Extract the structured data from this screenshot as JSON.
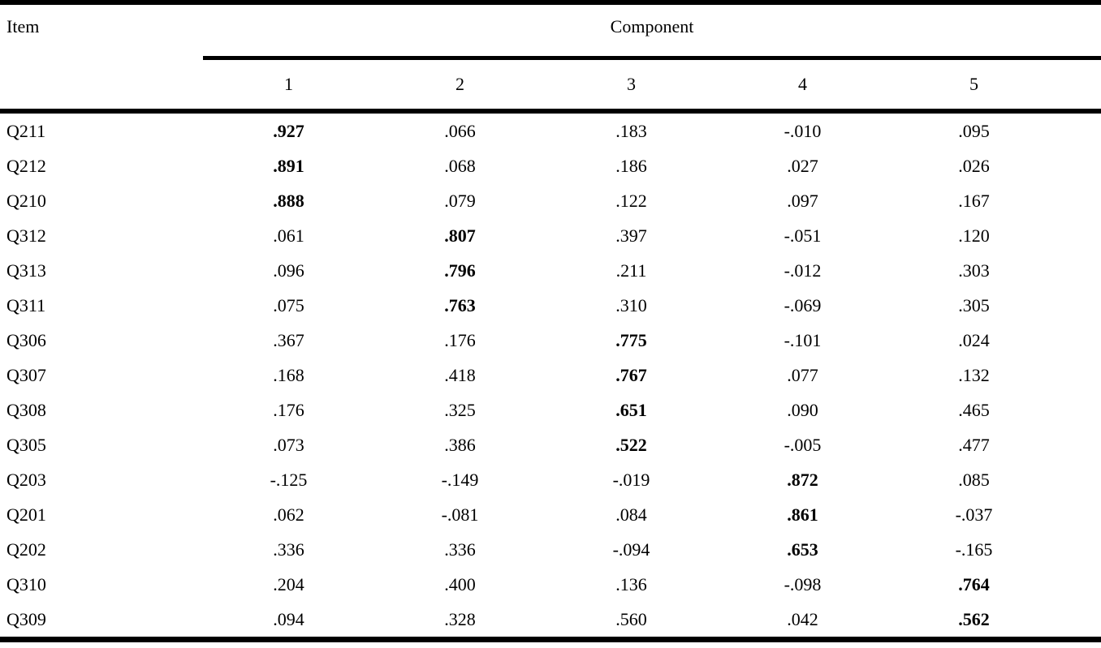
{
  "colors": {
    "background": "#ffffff",
    "text": "#000000",
    "rule": "#000000"
  },
  "table": {
    "item_header": "Item",
    "group_header": "Component",
    "column_headers": [
      "1",
      "2",
      "3",
      "4",
      "5"
    ],
    "rows": [
      {
        "item": "Q211",
        "values": [
          ".927",
          ".066",
          ".183",
          "-.010",
          ".095"
        ],
        "bold": 0
      },
      {
        "item": "Q212",
        "values": [
          ".891",
          ".068",
          ".186",
          ".027",
          ".026"
        ],
        "bold": 0
      },
      {
        "item": "Q210",
        "values": [
          ".888",
          ".079",
          ".122",
          ".097",
          ".167"
        ],
        "bold": 0
      },
      {
        "item": "Q312",
        "values": [
          ".061",
          ".807",
          ".397",
          "-.051",
          ".120"
        ],
        "bold": 1
      },
      {
        "item": "Q313",
        "values": [
          ".096",
          ".796",
          ".211",
          "-.012",
          ".303"
        ],
        "bold": 1
      },
      {
        "item": "Q311",
        "values": [
          ".075",
          ".763",
          ".310",
          "-.069",
          ".305"
        ],
        "bold": 1
      },
      {
        "item": "Q306",
        "values": [
          ".367",
          ".176",
          ".775",
          "-.101",
          ".024"
        ],
        "bold": 2
      },
      {
        "item": "Q307",
        "values": [
          ".168",
          ".418",
          ".767",
          ".077",
          ".132"
        ],
        "bold": 2
      },
      {
        "item": "Q308",
        "values": [
          ".176",
          ".325",
          ".651",
          ".090",
          ".465"
        ],
        "bold": 2
      },
      {
        "item": "Q305",
        "values": [
          ".073",
          ".386",
          ".522",
          "-.005",
          ".477"
        ],
        "bold": 2
      },
      {
        "item": "Q203",
        "values": [
          "-.125",
          "-.149",
          "-.019",
          ".872",
          ".085"
        ],
        "bold": 3
      },
      {
        "item": "Q201",
        "values": [
          ".062",
          "-.081",
          ".084",
          ".861",
          "-.037"
        ],
        "bold": 3
      },
      {
        "item": "Q202",
        "values": [
          ".336",
          ".336",
          "-.094",
          ".653",
          "-.165"
        ],
        "bold": 3
      },
      {
        "item": "Q310",
        "values": [
          ".204",
          ".400",
          ".136",
          "-.098",
          ".764"
        ],
        "bold": 4
      },
      {
        "item": "Q309",
        "values": [
          ".094",
          ".328",
          ".560",
          ".042",
          ".562"
        ],
        "bold": 4
      }
    ]
  },
  "chart_data": {
    "type": "table",
    "title": "",
    "columns": [
      "Item",
      "1",
      "2",
      "3",
      "4",
      "5"
    ],
    "rows": [
      [
        "Q211",
        0.927,
        0.066,
        0.183,
        -0.01,
        0.095
      ],
      [
        "Q212",
        0.891,
        0.068,
        0.186,
        0.027,
        0.026
      ],
      [
        "Q210",
        0.888,
        0.079,
        0.122,
        0.097,
        0.167
      ],
      [
        "Q312",
        0.061,
        0.807,
        0.397,
        -0.051,
        0.12
      ],
      [
        "Q313",
        0.096,
        0.796,
        0.211,
        -0.012,
        0.303
      ],
      [
        "Q311",
        0.075,
        0.763,
        0.31,
        -0.069,
        0.305
      ],
      [
        "Q306",
        0.367,
        0.176,
        0.775,
        -0.101,
        0.024
      ],
      [
        "Q307",
        0.168,
        0.418,
        0.767,
        0.077,
        0.132
      ],
      [
        "Q308",
        0.176,
        0.325,
        0.651,
        0.09,
        0.465
      ],
      [
        "Q305",
        0.073,
        0.386,
        0.522,
        -0.005,
        0.477
      ],
      [
        "Q203",
        -0.125,
        -0.149,
        -0.019,
        0.872,
        0.085
      ],
      [
        "Q201",
        0.062,
        -0.081,
        0.084,
        0.861,
        -0.037
      ],
      [
        "Q202",
        0.336,
        0.336,
        -0.094,
        0.653,
        -0.165
      ],
      [
        "Q310",
        0.204,
        0.4,
        0.136,
        -0.098,
        0.764
      ],
      [
        "Q309",
        0.094,
        0.328,
        0.56,
        0.042,
        0.562
      ]
    ]
  }
}
